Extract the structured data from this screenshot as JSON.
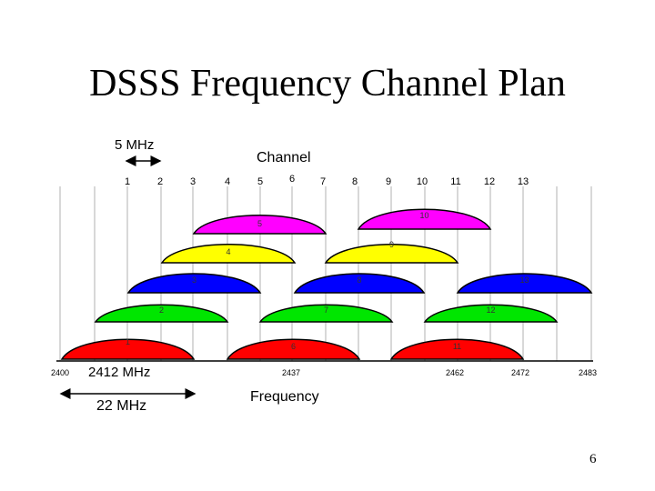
{
  "slide": {
    "title": "DSSS Frequency Channel Plan",
    "page_number": "6"
  },
  "diagram": {
    "channel_label": "Channel",
    "frequency_label": "Frequency",
    "spacing_label": "5 MHz",
    "width_label": "22 MHz",
    "center_label": "2412 MHz",
    "channel_numbers": [
      "1",
      "2",
      "3",
      "4",
      "5",
      "6",
      "7",
      "8",
      "9",
      "10",
      "11",
      "12",
      "13"
    ],
    "frequency_ticks": [
      "2400",
      "2437",
      "2462",
      "2472",
      "2483"
    ],
    "bands": [
      {
        "channel": 1,
        "label": "1",
        "color": "#ff0000"
      },
      {
        "channel": 2,
        "label": "2",
        "color": "#00e600"
      },
      {
        "channel": 3,
        "label": "3",
        "color": "#0000ff"
      },
      {
        "channel": 4,
        "label": "4",
        "color": "#ffff00"
      },
      {
        "channel": 5,
        "label": "5",
        "color": "#ff00ff"
      },
      {
        "channel": 6,
        "label": "6",
        "color": "#ff0000"
      },
      {
        "channel": 7,
        "label": "7",
        "color": "#00e600"
      },
      {
        "channel": 8,
        "label": "8",
        "color": "#0000ff"
      },
      {
        "channel": 9,
        "label": "9",
        "color": "#ffff00"
      },
      {
        "channel": 10,
        "label": "10",
        "color": "#ff00ff"
      },
      {
        "channel": 11,
        "label": "11",
        "color": "#ff0000"
      },
      {
        "channel": 12,
        "label": "12",
        "color": "#00e600"
      },
      {
        "channel": 13,
        "label": "13",
        "color": "#0000ff"
      }
    ]
  }
}
